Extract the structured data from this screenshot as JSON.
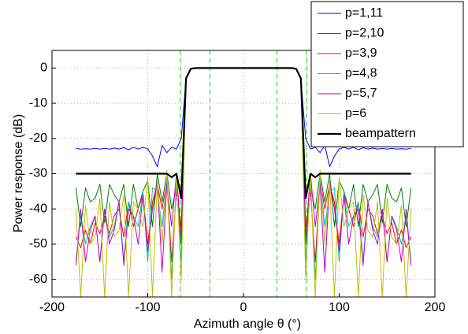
{
  "chart_data": {
    "type": "line",
    "x_label": "Azimuth angle θ (°)",
    "y_label": "Power response (dB)",
    "xlim": [
      -200,
      200
    ],
    "ylim": [
      -65,
      5
    ],
    "xticks": [
      -200,
      -100,
      0,
      100,
      200
    ],
    "yticks": [
      -60,
      -50,
      -40,
      -30,
      -20,
      -10,
      0
    ],
    "grid": true,
    "legend": "top-right",
    "vlines": [
      -66,
      -35,
      35,
      66
    ],
    "vline_color": "#33dd33",
    "x": [
      -175,
      -170,
      -165,
      -160,
      -155,
      -150,
      -145,
      -140,
      -135,
      -130,
      -125,
      -120,
      -115,
      -110,
      -105,
      -100,
      -95,
      -90,
      -85,
      -80,
      -75,
      -70,
      -65,
      -60,
      -55,
      -50,
      -45,
      -40,
      -35,
      -30,
      -25,
      -20,
      -15,
      -10,
      -5,
      0,
      5,
      10,
      15,
      20,
      25,
      30,
      35,
      40,
      45,
      50,
      55,
      60,
      65,
      70,
      75,
      80,
      85,
      90,
      95,
      100,
      105,
      110,
      115,
      120,
      125,
      130,
      135,
      140,
      145,
      150,
      155,
      160,
      165,
      170,
      175
    ],
    "series": [
      {
        "name": "p=1,11",
        "color": "#0000ff",
        "width": 1,
        "values": [
          -22.8,
          -23,
          -22.9,
          -23,
          -22.8,
          -23,
          -22.8,
          -23,
          -22.7,
          -23,
          -22.6,
          -23.2,
          -22.5,
          -23,
          -22.5,
          -23,
          -25,
          -28,
          -22,
          -24,
          -22.5,
          -23,
          -20,
          -3,
          -0.2,
          0,
          0,
          0,
          0,
          0,
          0,
          0,
          0,
          0,
          0,
          0,
          0,
          0,
          0,
          0,
          0,
          0,
          0,
          0,
          0,
          0,
          -0.2,
          -3,
          -20,
          -23,
          -22.5,
          -24,
          -22,
          -28,
          -25,
          -23,
          -22.5,
          -23,
          -22.5,
          -23.2,
          -22.6,
          -23,
          -22.7,
          -23,
          -22.8,
          -23,
          -22.8,
          -23,
          -22.9,
          -23,
          -22.8
        ]
      },
      {
        "name": "p=2,10",
        "color": "#008000",
        "width": 1,
        "values": [
          -34,
          -45,
          -34,
          -38,
          -37,
          -33,
          -44,
          -33,
          -36,
          -38,
          -33,
          -45,
          -33,
          -40,
          -35,
          -32,
          -45,
          -30,
          -38,
          -30,
          -40,
          -34,
          -50,
          -3,
          -0.2,
          0,
          0,
          0,
          0,
          0,
          0,
          0,
          0,
          0,
          0,
          0,
          0,
          0,
          0,
          0,
          0,
          0,
          0,
          0,
          0,
          0,
          -0.2,
          -3,
          -50,
          -34,
          -40,
          -30,
          -38,
          -30,
          -45,
          -32,
          -35,
          -40,
          -33,
          -45,
          -33,
          -38,
          -36,
          -33,
          -44,
          -33,
          -37,
          -38,
          -34,
          -45,
          -34
        ]
      },
      {
        "name": "p=3,9",
        "color": "#ff0000",
        "width": 1,
        "values": [
          -48,
          -51,
          -46,
          -50,
          -44,
          -47,
          -42,
          -47,
          -42,
          -40,
          -48,
          -38,
          -45,
          -40,
          -36,
          -50,
          -38,
          -33,
          -40,
          -32,
          -55,
          -35,
          -45,
          -3,
          -0.2,
          0,
          0,
          0,
          0,
          0,
          0,
          0,
          0,
          0,
          0,
          0,
          0,
          0,
          0,
          0,
          0,
          0,
          0,
          0,
          0,
          0,
          -0.2,
          -3,
          -45,
          -35,
          -55,
          -32,
          -40,
          -33,
          -38,
          -50,
          -36,
          -40,
          -45,
          -38,
          -48,
          -40,
          -42,
          -47,
          -42,
          -47,
          -44,
          -50,
          -46,
          -51,
          -48
        ]
      },
      {
        "name": "p=4,8",
        "color": "#00bfbf",
        "width": 1,
        "values": [
          -55,
          -42,
          -50,
          -45,
          -42,
          -55,
          -40,
          -48,
          -45,
          -38,
          -55,
          -38,
          -42,
          -45,
          -35,
          -55,
          -34,
          -35,
          -45,
          -31,
          -60,
          -32,
          -55,
          -3,
          -0.2,
          0,
          0,
          0,
          0,
          0,
          0,
          0,
          0,
          0,
          0,
          0,
          0,
          0,
          0,
          0,
          0,
          0,
          0,
          0,
          0,
          0,
          -0.2,
          -3,
          -55,
          -32,
          -60,
          -31,
          -45,
          -35,
          -34,
          -55,
          -35,
          -45,
          -42,
          -38,
          -55,
          -38,
          -45,
          -48,
          -40,
          -55,
          -42,
          -45,
          -50,
          -42,
          -55
        ]
      },
      {
        "name": "p=5,7",
        "color": "#bf00bf",
        "width": 1,
        "values": [
          -56,
          -40,
          -55,
          -46,
          -42,
          -55,
          -40,
          -50,
          -46,
          -38,
          -56,
          -40,
          -42,
          -50,
          -36,
          -52,
          -40,
          -32,
          -58,
          -33,
          -45,
          -30,
          -48,
          -3,
          -0.2,
          0,
          0,
          0,
          0,
          0,
          0,
          0,
          0,
          0,
          0,
          0,
          0,
          0,
          0,
          0,
          0,
          0,
          0,
          0,
          0,
          0,
          -0.2,
          -3,
          -48,
          -30,
          -45,
          -33,
          -58,
          -32,
          -40,
          -52,
          -36,
          -50,
          -42,
          -40,
          -56,
          -38,
          -46,
          -50,
          -40,
          -55,
          -42,
          -46,
          -55,
          -40,
          -56
        ]
      },
      {
        "name": "p=6",
        "color": "#bfbf00",
        "width": 1,
        "values": [
          -40,
          -65,
          -39,
          -50,
          -48,
          -37,
          -65,
          -38,
          -48,
          -46,
          -36,
          -65,
          -38,
          -40,
          -45,
          -31,
          -65,
          -32,
          -50,
          -29,
          -65,
          -30,
          -60,
          -3,
          -0.2,
          0,
          0,
          0,
          0,
          0,
          0,
          0,
          0,
          0,
          0,
          0,
          0,
          0,
          0,
          0,
          0,
          0,
          0,
          0,
          0,
          0,
          -0.2,
          -3,
          -60,
          -30,
          -65,
          -29,
          -50,
          -32,
          -65,
          -31,
          -45,
          -40,
          -38,
          -65,
          -36,
          -46,
          -48,
          -38,
          -65,
          -37,
          -48,
          -50,
          -39,
          -65,
          -40
        ]
      },
      {
        "name": "beampattern",
        "color": "#000000",
        "width": 2.2,
        "values": [
          -30,
          -30,
          -30,
          -30,
          -30,
          -30,
          -30,
          -30,
          -30,
          -30,
          -30,
          -30,
          -30,
          -30,
          -30,
          -30,
          -30,
          -30,
          -30,
          -30,
          -31,
          -30,
          -37,
          -3,
          -0.2,
          0,
          0,
          0,
          0,
          0,
          0,
          0,
          0,
          0,
          0,
          0,
          0,
          0,
          0,
          0,
          0,
          0,
          0,
          0,
          0,
          0,
          -0.2,
          -3,
          -37,
          -30,
          -31,
          -30,
          -30,
          -30,
          -30,
          -30,
          -30,
          -30,
          -30,
          -30,
          -30,
          -30,
          -30,
          -30,
          -30,
          -30,
          -30,
          -30,
          -30,
          -30,
          -30
        ]
      }
    ]
  }
}
